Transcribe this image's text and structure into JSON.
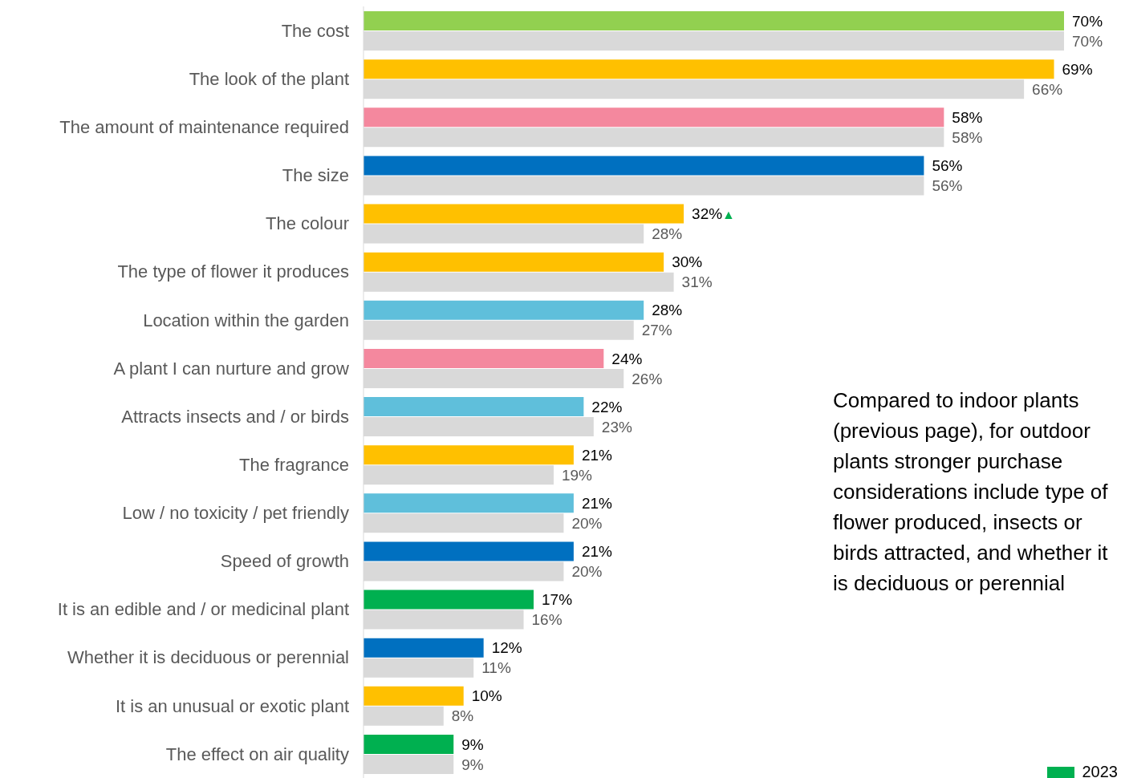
{
  "chart_data": {
    "type": "bar",
    "orientation": "horizontal",
    "legend": "bottom right",
    "categories": [
      "The cost",
      "The look of the plant",
      "The amount of maintenance required",
      "The size",
      "The colour",
      "The type of flower it produces",
      "Location within the garden",
      "A plant I can nurture and grow",
      "Attracts insects and / or birds",
      "The fragrance",
      "Low / no toxicity / pet friendly",
      "Speed of growth",
      "It is an edible and / or medicinal plant",
      "Whether it is deciduous or perennial",
      "It is an unusual or exotic plant",
      "The effect on air quality"
    ],
    "series": [
      {
        "name": "2023",
        "color": "#00b050",
        "colors": [
          "#92d050",
          "#ffc000",
          "#f4889e",
          "#0070c0",
          "#ffc000",
          "#ffc000",
          "#5fbfdb",
          "#f4889e",
          "#5fbfdb",
          "#ffc000",
          "#5fbfdb",
          "#0070c0",
          "#00b050",
          "#0070c0",
          "#ffc000",
          "#00b050"
        ],
        "values": [
          70,
          69,
          58,
          56,
          32,
          30,
          28,
          24,
          22,
          21,
          21,
          21,
          17,
          12,
          10,
          9
        ],
        "value_labels": [
          "70%",
          "69%",
          "58%",
          "56%",
          "32%▲",
          "30%",
          "28%",
          "24%",
          "22%",
          "21%",
          "21%",
          "21%",
          "17%",
          "12%",
          "10%",
          "9%"
        ]
      },
      {
        "color": "#d9d9d9",
        "values": [
          70,
          66,
          58,
          56,
          28,
          31,
          27,
          26,
          23,
          19,
          20,
          20,
          16,
          11,
          8,
          9
        ],
        "value_labels": [
          "70%",
          "66%",
          "58%",
          "56%",
          "28%",
          "31%",
          "27%",
          "26%",
          "23%",
          "19%",
          "20%",
          "20%",
          "16%",
          "11%",
          "8%",
          "9%"
        ]
      }
    ],
    "annotations": [
      "Compared to indoor plants (previous page), for outdoor plants stronger purchase considerations include type of flower produced, insects or birds attracted, and whether it is deciduous or perennial"
    ]
  }
}
